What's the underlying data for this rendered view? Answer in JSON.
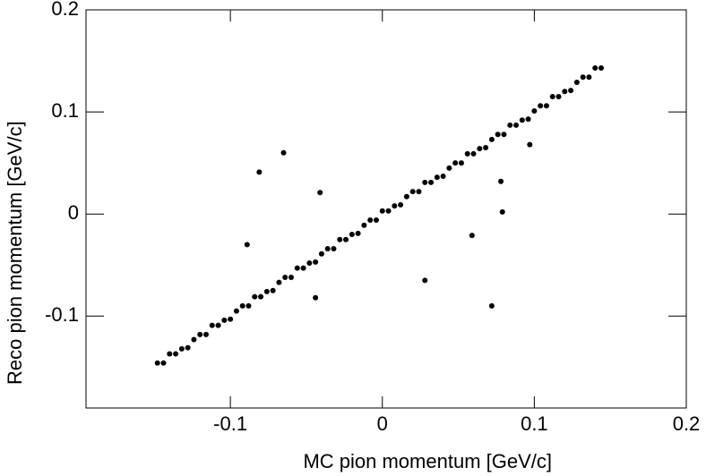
{
  "chart_data": {
    "type": "scatter",
    "x_label": "MC pion momentum [GeV/c]",
    "y_label": "Reco pion momentum [GeV/c]",
    "xlim": [
      -0.195,
      0.2
    ],
    "ylim": [
      -0.19,
      0.2
    ],
    "xticks": [
      -0.1,
      0,
      0.1,
      0.2
    ],
    "yticks": [
      -0.1,
      0,
      0.1,
      0.2
    ],
    "color": "#000000",
    "x": [
      -0.148,
      -0.144,
      -0.14,
      -0.136,
      -0.132,
      -0.128,
      -0.124,
      -0.12,
      -0.116,
      -0.112,
      -0.108,
      -0.104,
      -0.1,
      -0.096,
      -0.092,
      -0.088,
      -0.084,
      -0.08,
      -0.076,
      -0.072,
      -0.068,
      -0.064,
      -0.06,
      -0.056,
      -0.052,
      -0.048,
      -0.044,
      -0.04,
      -0.036,
      -0.032,
      -0.028,
      -0.024,
      -0.02,
      -0.016,
      -0.012,
      -0.008,
      -0.004,
      0.0,
      0.004,
      0.008,
      0.012,
      0.016,
      0.02,
      0.024,
      0.028,
      0.032,
      0.036,
      0.04,
      0.044,
      0.048,
      0.052,
      0.056,
      0.06,
      0.064,
      0.068,
      0.072,
      0.076,
      0.08,
      0.084,
      0.088,
      0.092,
      0.096,
      0.1,
      0.104,
      0.108,
      0.112,
      0.116,
      0.12,
      0.124,
      0.128,
      0.132,
      0.136,
      0.14,
      0.144,
      -0.065,
      -0.041,
      -0.089,
      0.072,
      0.028,
      0.078,
      0.079,
      0.059,
      0.097,
      -0.044,
      -0.081
    ],
    "y": [
      -0.146,
      -0.146,
      -0.137,
      -0.137,
      -0.132,
      -0.131,
      -0.123,
      -0.118,
      -0.118,
      -0.109,
      -0.109,
      -0.104,
      -0.103,
      -0.095,
      -0.09,
      -0.09,
      -0.081,
      -0.081,
      -0.076,
      -0.075,
      -0.067,
      -0.062,
      -0.062,
      -0.053,
      -0.053,
      -0.048,
      -0.047,
      -0.039,
      -0.034,
      -0.034,
      -0.025,
      -0.025,
      -0.02,
      -0.019,
      -0.011,
      -0.006,
      -0.006,
      0.003,
      0.003,
      0.008,
      0.009,
      0.017,
      0.022,
      0.022,
      0.031,
      0.031,
      0.036,
      0.037,
      0.045,
      0.05,
      0.05,
      0.059,
      0.059,
      0.064,
      0.065,
      0.073,
      0.078,
      0.078,
      0.087,
      0.087,
      0.092,
      0.093,
      0.101,
      0.106,
      0.106,
      0.115,
      0.115,
      0.12,
      0.121,
      0.129,
      0.134,
      0.134,
      0.143,
      0.143,
      0.06,
      0.021,
      -0.03,
      -0.09,
      -0.065,
      0.032,
      0.002,
      -0.021,
      0.068,
      -0.082,
      0.041
    ]
  }
}
